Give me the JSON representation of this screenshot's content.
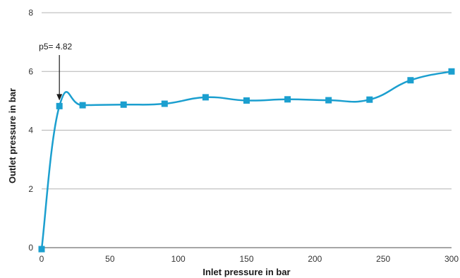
{
  "chart_data": {
    "type": "line",
    "xlabel": "Inlet pressure in bar",
    "ylabel": "Outlet pressure in bar",
    "xlim": [
      0,
      300
    ],
    "ylim": [
      0,
      8
    ],
    "x_ticks": [
      "0",
      "50",
      "100",
      "150",
      "200",
      "250",
      "300"
    ],
    "y_ticks": [
      "0",
      "2",
      "4",
      "6",
      "8"
    ],
    "grid": "horizontal",
    "series": [
      {
        "color": "#1b9fcf",
        "marker": "square",
        "x": [
          0,
          13,
          30,
          60,
          90,
          120,
          150,
          180,
          210,
          240,
          270,
          300
        ],
        "y": [
          -0.05,
          4.82,
          4.85,
          4.87,
          4.9,
          5.12,
          5.01,
          5.05,
          5.02,
          5.04,
          5.7,
          6.0
        ]
      }
    ],
    "annotation": {
      "text": "p5= 4.82",
      "x": 13,
      "y": 4.82
    },
    "colors": {
      "grid": "#b3b3b3",
      "axis": "#4d4d4d",
      "line": "#1b9fcf"
    }
  }
}
